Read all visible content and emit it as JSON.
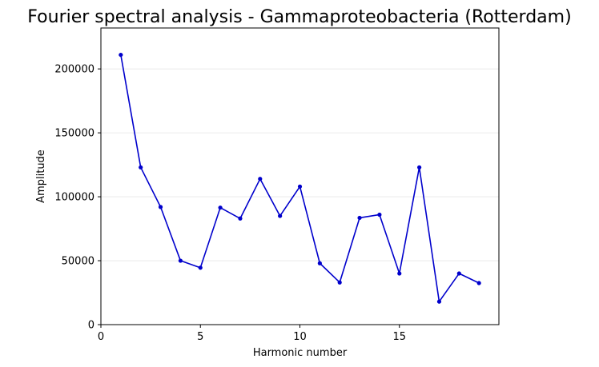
{
  "chart_data": {
    "type": "line",
    "title": "Fourier spectral analysis - Gammaproteobacteria (Rotterdam)",
    "xlabel": "Harmonic number",
    "ylabel": "Amplitude",
    "xlim": [
      0,
      20
    ],
    "ylim": [
      0,
      232000
    ],
    "xticks": [
      0,
      5,
      10,
      15
    ],
    "yticks": [
      0,
      50000,
      100000,
      150000,
      200000
    ],
    "grid": "horizontal",
    "legend": "none",
    "color": "#0000cc",
    "series": [
      {
        "x": [
          1,
          2,
          3,
          4,
          5,
          6,
          7,
          8,
          9,
          10,
          11,
          12,
          13,
          14,
          15,
          16,
          17,
          18,
          19
        ],
        "values": [
          211000,
          123000,
          92000,
          50000,
          44500,
          91500,
          83000,
          114000,
          85000,
          108000,
          48000,
          33000,
          83500,
          86000,
          40000,
          123000,
          18000,
          40000,
          32500
        ]
      }
    ]
  }
}
